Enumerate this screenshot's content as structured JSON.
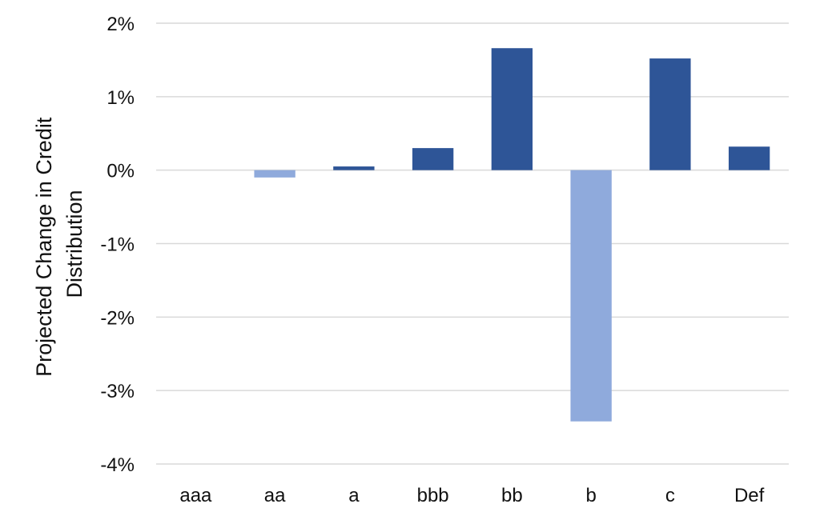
{
  "chart_data": {
    "type": "bar",
    "categories": [
      "aaa",
      "aa",
      "a",
      "bbb",
      "bb",
      "b",
      "c",
      "Def"
    ],
    "values": [
      0.0,
      -0.1,
      0.05,
      0.3,
      1.66,
      -3.42,
      1.52,
      0.32
    ],
    "ylim": [
      -4,
      2
    ],
    "yticks": [
      2,
      1,
      0,
      -1,
      -2,
      -3,
      -4
    ],
    "ytick_labels": [
      "2%",
      "1%",
      "0%",
      "-1%",
      "-2%",
      "-3%",
      "-4%"
    ],
    "ylabel_lines": [
      "Projected Change in Credit",
      "Distribution"
    ],
    "xlabel": "",
    "title": "",
    "grid": "horizontal",
    "legend": "none",
    "colors": {
      "positive": "#2e5597",
      "negative": "#8faadc",
      "grid": "#d9d9d9",
      "text": "#111111"
    }
  }
}
